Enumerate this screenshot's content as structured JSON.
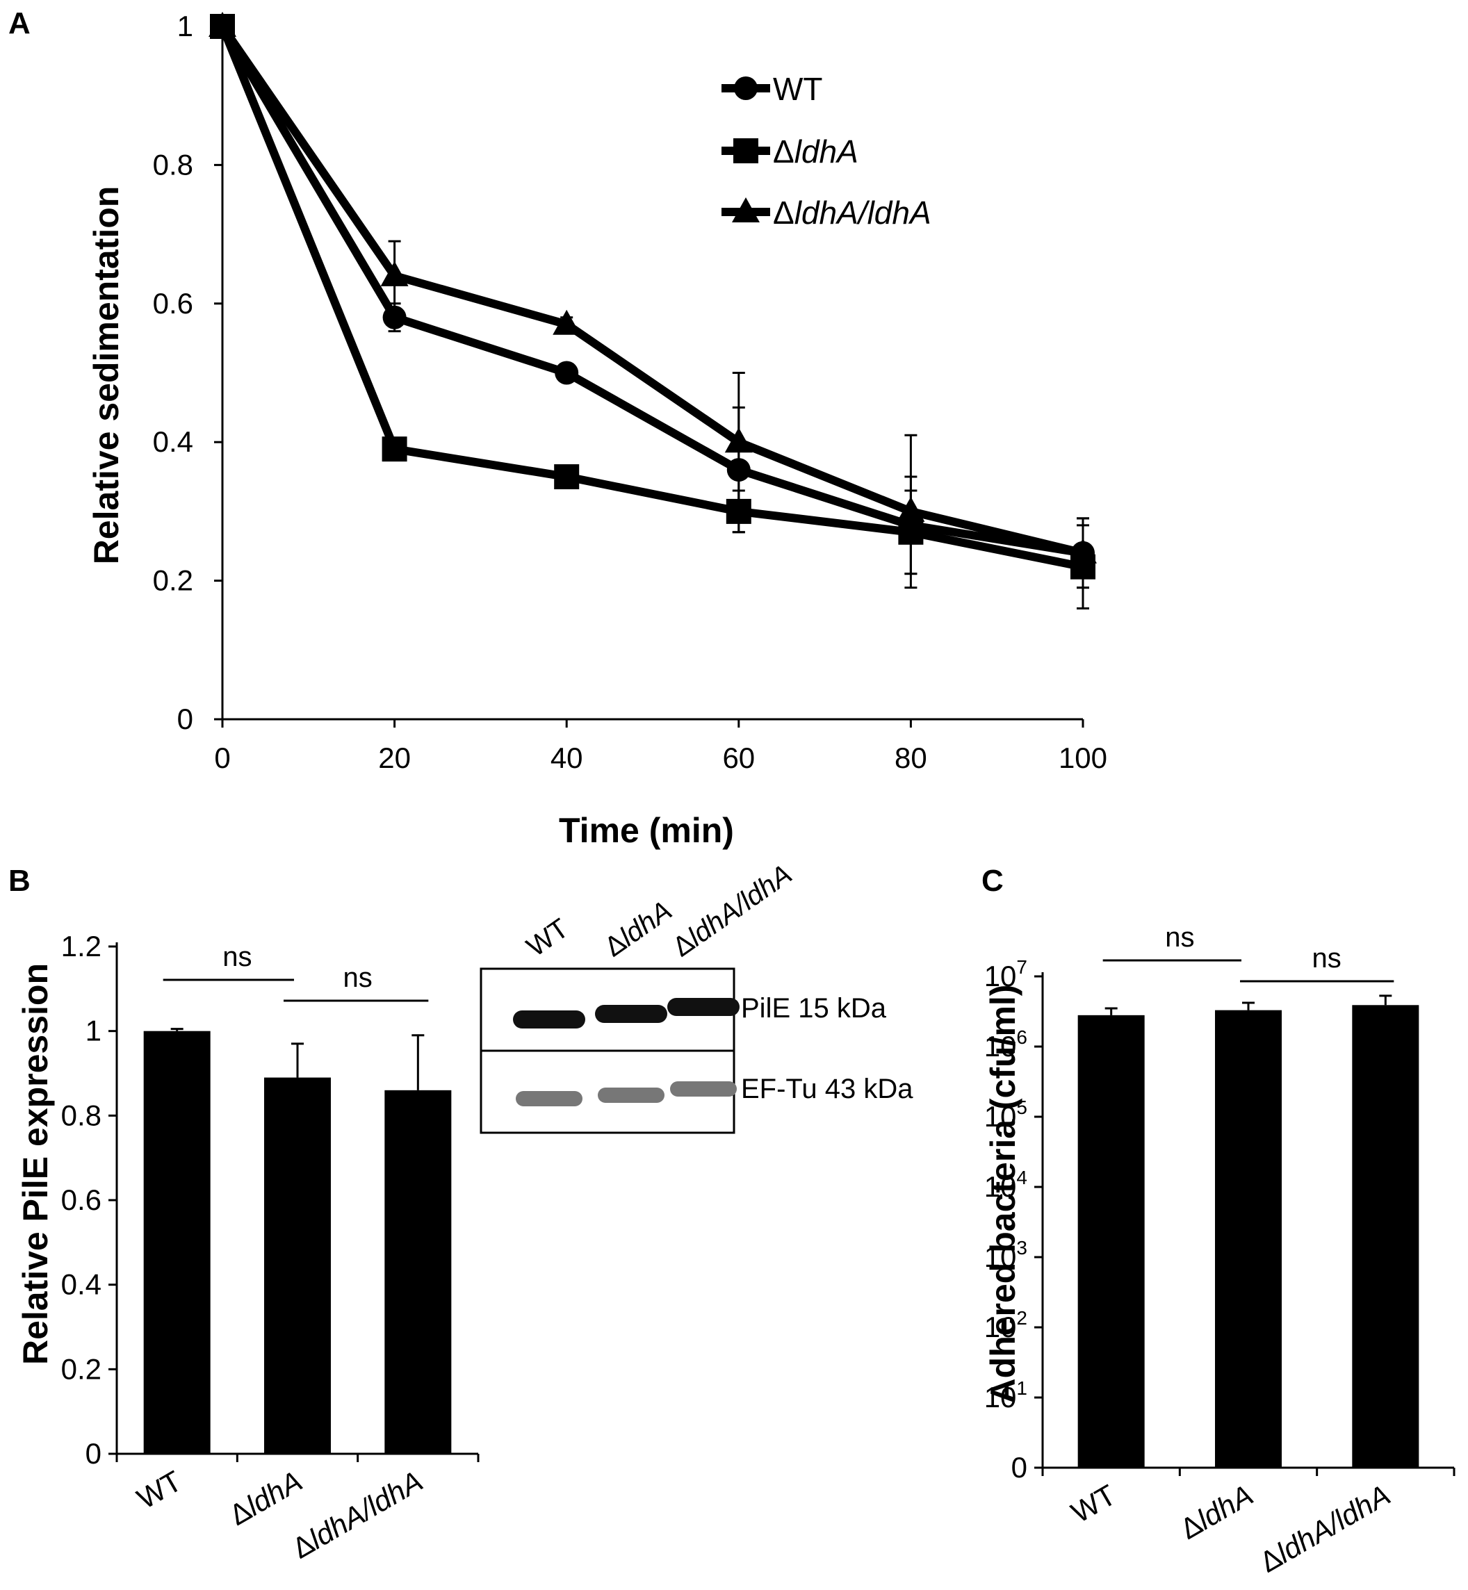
{
  "figure_labels": {
    "a": "A",
    "b": "B",
    "c": "C"
  },
  "chart_data": [
    {
      "panel": "A",
      "type": "line",
      "xlabel": "Time (min)",
      "ylabel": "Relative sedimentation",
      "x": [
        0,
        20,
        40,
        60,
        80,
        100
      ],
      "xlim": [
        0,
        100
      ],
      "ylim": [
        0,
        1
      ],
      "xticks": [
        "0",
        "20",
        "40",
        "60",
        "80",
        "100"
      ],
      "yticks": [
        "0",
        "0.2",
        "0.4",
        "0.6",
        "0.8",
        "1"
      ],
      "series": [
        {
          "name": "WT",
          "marker": "circle",
          "values": [
            1,
            0.58,
            0.5,
            0.36,
            0.28,
            0.24
          ],
          "errors": [
            0,
            0.02,
            0.01,
            0.09,
            0.07,
            0.05
          ]
        },
        {
          "name": "ΔldhA",
          "marker": "square",
          "values": [
            1,
            0.39,
            0.35,
            0.3,
            0.27,
            0.22
          ],
          "errors": [
            0,
            0.01,
            0.01,
            0.03,
            0.06,
            0.06
          ]
        },
        {
          "name": "ΔldhA/ldhA",
          "marker": "triangle",
          "values": [
            1,
            0.64,
            0.57,
            0.4,
            0.3,
            0.24
          ],
          "errors": [
            0,
            0.05,
            0.01,
            0.1,
            0.11,
            0.05
          ]
        }
      ],
      "legend": [
        {
          "prefix": "",
          "italic": "WT"
        },
        {
          "prefix": "Δ",
          "italic": "ldhA"
        },
        {
          "prefix": "Δ",
          "italic": "ldhA/ldhA"
        }
      ]
    },
    {
      "panel": "B",
      "type": "bar",
      "ylabel": "Relative PilE expression",
      "categories": [
        "WT",
        "ΔldhA",
        "ΔldhA/ldhA"
      ],
      "values": [
        1.0,
        0.89,
        0.86
      ],
      "errors": [
        0.005,
        0.08,
        0.13
      ],
      "ylim": [
        0,
        1.2
      ],
      "yticks": [
        "0",
        "0.2",
        "0.4",
        "0.6",
        "0.8",
        "1",
        "1.2"
      ],
      "significance": [
        {
          "from": 0,
          "to": 1,
          "label": "ns"
        },
        {
          "from": 1,
          "to": 2,
          "label": "ns"
        }
      ]
    },
    {
      "panel": "C",
      "type": "bar",
      "yscale": "log",
      "ylabel": "Adhered bacteria (cfu/ml)",
      "categories": [
        "WT",
        "ΔldhA",
        "ΔldhA/ldhA"
      ],
      "values": [
        2800000,
        3300000,
        3900000
      ],
      "error_upper": [
        3500000,
        4200000,
        5300000
      ],
      "ylim": [
        1,
        10000000
      ],
      "yticks": [
        {
          "base": "0",
          "exp": ""
        },
        {
          "base": "10",
          "exp": "1"
        },
        {
          "base": "10",
          "exp": "2"
        },
        {
          "base": "10",
          "exp": "3"
        },
        {
          "base": "10",
          "exp": "4"
        },
        {
          "base": "10",
          "exp": "5"
        },
        {
          "base": "10",
          "exp": "6"
        },
        {
          "base": "10",
          "exp": "7"
        }
      ],
      "significance": [
        {
          "from": 0,
          "to": 1,
          "label": "ns"
        },
        {
          "from": 1,
          "to": 2,
          "label": "ns"
        }
      ]
    }
  ],
  "blot": {
    "lanes": [
      "WT",
      "ΔldhA",
      "ΔldhA/ldhA"
    ],
    "bands": [
      {
        "label": "PilE 15 kDa",
        "color": "#111111"
      },
      {
        "label": "EF-Tu 43 kDa",
        "color": "#777777"
      }
    ]
  },
  "category_labels_rich": [
    {
      "prefix": "",
      "italic": "WT"
    },
    {
      "prefix": "Δ",
      "italic": "ldhA"
    },
    {
      "prefix": "Δ",
      "italic": "ldhA/ldhA"
    }
  ]
}
